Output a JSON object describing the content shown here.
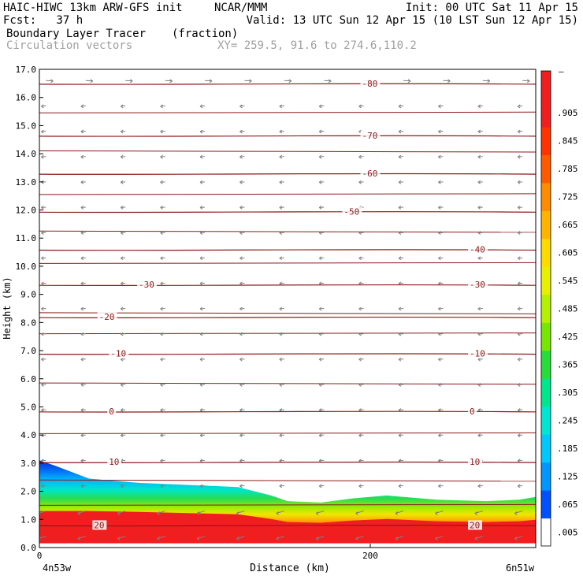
{
  "header": {
    "title": "HAIC-HIWC 13km ARW-GFS init",
    "org": "NCAR/MMM",
    "init": "Init: 00 UTC Sat 11 Apr 15",
    "fcst": "Fcst:   37 h",
    "valid": "Valid: 13 UTC Sun 12 Apr 15 (10 LST Sun 12 Apr 15)",
    "field": "Boundary Layer Tracer",
    "unit": "(fraction)",
    "overlay": "Circulation vectors",
    "xy": "XY= 259.5, 91.6 to 274.6,110.2"
  },
  "chart_data": {
    "type": "heatmap",
    "xlabel": "Distance (km)",
    "ylabel": "Height (km)",
    "xlim": [
      0,
      300
    ],
    "ylim": [
      0,
      17
    ],
    "x_ticks": [
      0,
      200
    ],
    "x_tick_labels": [
      "0",
      "200"
    ],
    "x_end_labels": [
      "4n53w",
      "6n51w"
    ],
    "y_ticks": [
      "0.0",
      "1.0",
      "2.0",
      "3.0",
      "4.0",
      "5.0",
      "6.0",
      "7.0",
      "8.0",
      "9.0",
      "10.0",
      "11.0",
      "12.0",
      "13.0",
      "14.0",
      "15.0",
      "16.0",
      "17.0"
    ],
    "colorbar_labels": [
      ".005",
      ".065",
      ".125",
      ".185",
      ".245",
      ".305",
      ".365",
      ".425",
      ".485",
      ".545",
      ".605",
      ".665",
      ".725",
      ".785",
      ".845",
      ".905"
    ],
    "colorbar_top_label": "–",
    "colorbar_colors": [
      "#ffffff",
      "#0050ff",
      "#0096ff",
      "#00c8ff",
      "#00e6d2",
      "#00e68c",
      "#28dc3c",
      "#78e600",
      "#b4f000",
      "#e6f000",
      "#ffdc00",
      "#ffb400",
      "#ff8c00",
      "#ff5a00",
      "#ff3200",
      "#f01e1e",
      "#f01e1e"
    ],
    "tracer_top_km": [
      [
        0,
        3.1
      ],
      [
        10,
        2.9
      ],
      [
        30,
        2.45
      ],
      [
        60,
        2.3
      ],
      [
        100,
        2.2
      ],
      [
        120,
        2.15
      ],
      [
        140,
        1.85
      ],
      [
        150,
        1.65
      ],
      [
        170,
        1.6
      ],
      [
        190,
        1.75
      ],
      [
        210,
        1.85
      ],
      [
        240,
        1.7
      ],
      [
        270,
        1.65
      ],
      [
        290,
        1.7
      ],
      [
        300,
        1.8
      ]
    ],
    "temperature_isotherms": [
      {
        "label": "-80",
        "y": 16.5,
        "label_x": [
          195
        ]
      },
      {
        "label": "-70",
        "y": 14.65,
        "label_x": [
          195
        ]
      },
      {
        "label": "-60",
        "y": 13.3,
        "label_x": [
          195
        ]
      },
      {
        "label": "-50",
        "y": 11.95,
        "label_x": [
          184
        ]
      },
      {
        "label": "-40",
        "y": 10.6,
        "label_x": [
          260
        ]
      },
      {
        "label": "-30",
        "y": 9.35,
        "label_x": [
          60,
          260
        ]
      },
      {
        "label": "-20",
        "y": 8.2,
        "label_x": [
          36
        ]
      },
      {
        "label": "-10",
        "y": 6.9,
        "label_x": [
          43,
          260
        ]
      },
      {
        "label": "0",
        "y": 4.85,
        "label_x": [
          42,
          260
        ]
      },
      {
        "label": "10",
        "y": 3.05,
        "label_x": [
          42,
          260
        ]
      },
      {
        "label": "20",
        "y": 0.8,
        "label_x": [
          33,
          260
        ]
      }
    ],
    "other_contours_km": [
      1.5,
      2.4,
      4.05,
      5.85,
      7.6,
      8.35,
      10.1,
      11.25,
      12.55,
      14.1,
      15.45
    ],
    "vectors": {
      "x_spacing_km": 24,
      "y_spacing_km": 0.9,
      "color": "#808080"
    }
  }
}
